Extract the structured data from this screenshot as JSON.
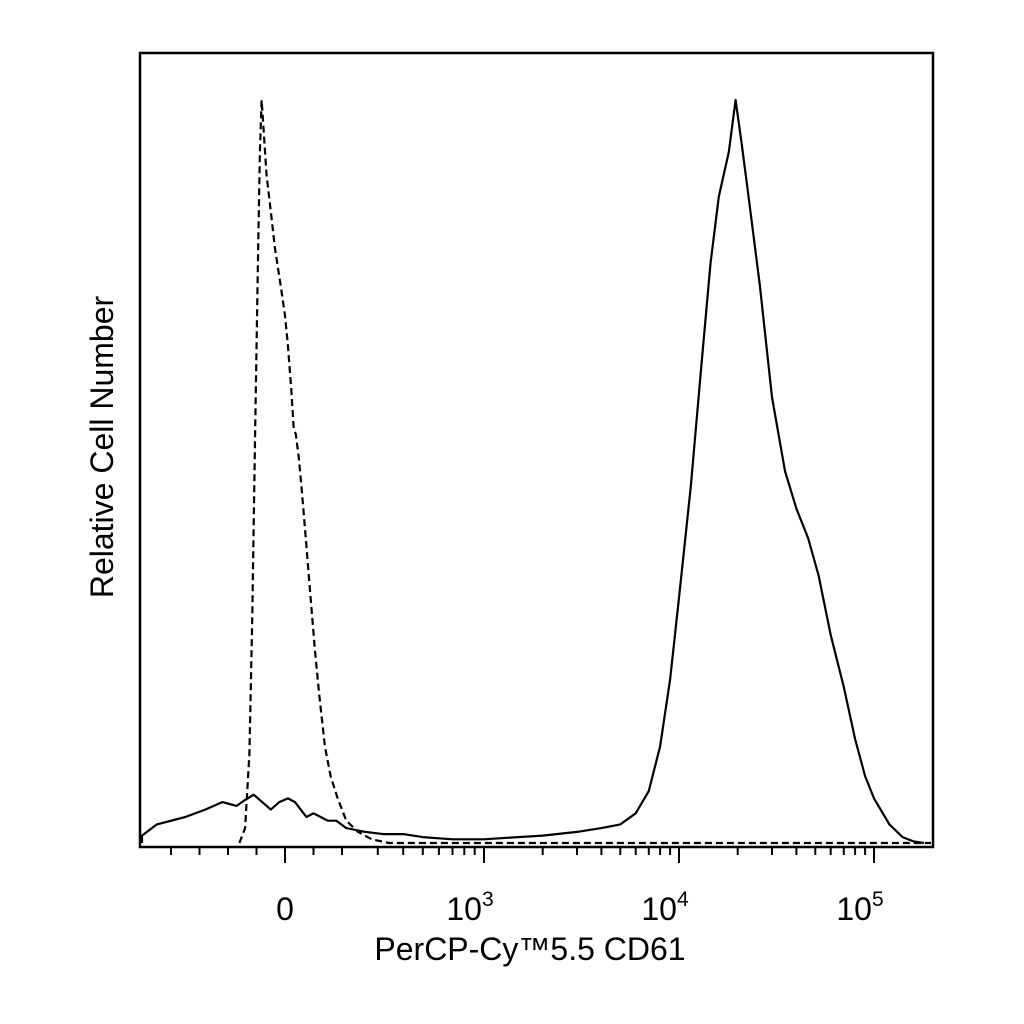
{
  "chart_data": {
    "type": "line",
    "title": "",
    "xlabel": "PerCP-Cy™5.5 CD61",
    "ylabel": "Relative Cell Number",
    "x_scale": "biexponential",
    "xlim": [
      -700,
      250000
    ],
    "ylim": [
      0,
      1
    ],
    "grid": false,
    "legend": "none",
    "x_ticks": [
      {
        "value": 0,
        "base": "0",
        "exp": ""
      },
      {
        "value": 1000,
        "base": "10",
        "exp": "3"
      },
      {
        "value": 10000,
        "base": "10",
        "exp": "4"
      },
      {
        "value": 100000,
        "base": "10",
        "exp": "5"
      }
    ],
    "series": [
      {
        "style": "dashed",
        "points": [
          [
            -160,
            0
          ],
          [
            -140,
            0.02
          ],
          [
            -125,
            0.12
          ],
          [
            -115,
            0.3
          ],
          [
            -105,
            0.55
          ],
          [
            -95,
            0.78
          ],
          [
            -88,
            0.93
          ],
          [
            -82,
            1.0
          ],
          [
            -75,
            0.96
          ],
          [
            -65,
            0.9
          ],
          [
            -50,
            0.85
          ],
          [
            -35,
            0.8
          ],
          [
            -15,
            0.75
          ],
          [
            0,
            0.71
          ],
          [
            10,
            0.67
          ],
          [
            22,
            0.61
          ],
          [
            30,
            0.56
          ],
          [
            38,
            0.55
          ],
          [
            48,
            0.52
          ],
          [
            60,
            0.47
          ],
          [
            75,
            0.4
          ],
          [
            90,
            0.33
          ],
          [
            105,
            0.26
          ],
          [
            120,
            0.2
          ],
          [
            140,
            0.13
          ],
          [
            160,
            0.09
          ],
          [
            185,
            0.06
          ],
          [
            210,
            0.03
          ],
          [
            240,
            0.015
          ],
          [
            280,
            0.005
          ],
          [
            340,
            0
          ],
          [
            1000,
            0
          ],
          [
            10000,
            0
          ],
          [
            100000,
            0
          ],
          [
            200000,
            0
          ]
        ]
      },
      {
        "style": "solid",
        "points": [
          [
            -650,
            0
          ],
          [
            -550,
            0.01
          ],
          [
            -450,
            0.025
          ],
          [
            -350,
            0.035
          ],
          [
            -280,
            0.045
          ],
          [
            -220,
            0.055
          ],
          [
            -170,
            0.05
          ],
          [
            -140,
            0.058
          ],
          [
            -110,
            0.065
          ],
          [
            -80,
            0.055
          ],
          [
            -50,
            0.045
          ],
          [
            -20,
            0.055
          ],
          [
            10,
            0.06
          ],
          [
            35,
            0.055
          ],
          [
            55,
            0.045
          ],
          [
            75,
            0.035
          ],
          [
            100,
            0.04
          ],
          [
            125,
            0.035
          ],
          [
            150,
            0.03
          ],
          [
            180,
            0.03
          ],
          [
            210,
            0.02
          ],
          [
            260,
            0.015
          ],
          [
            320,
            0.012
          ],
          [
            400,
            0.012
          ],
          [
            500,
            0.008
          ],
          [
            700,
            0.005
          ],
          [
            1000,
            0.005
          ],
          [
            1500,
            0.008
          ],
          [
            2000,
            0.01
          ],
          [
            3000,
            0.015
          ],
          [
            4000,
            0.02
          ],
          [
            5000,
            0.025
          ],
          [
            6000,
            0.04
          ],
          [
            7000,
            0.07
          ],
          [
            8000,
            0.13
          ],
          [
            9000,
            0.22
          ],
          [
            10000,
            0.33
          ],
          [
            11500,
            0.48
          ],
          [
            13000,
            0.64
          ],
          [
            14500,
            0.78
          ],
          [
            16000,
            0.87
          ],
          [
            18000,
            0.93
          ],
          [
            19500,
            1.0
          ],
          [
            21000,
            0.94
          ],
          [
            23000,
            0.86
          ],
          [
            26000,
            0.75
          ],
          [
            30000,
            0.6
          ],
          [
            35000,
            0.5
          ],
          [
            40000,
            0.45
          ],
          [
            46000,
            0.41
          ],
          [
            52000,
            0.36
          ],
          [
            60000,
            0.28
          ],
          [
            70000,
            0.21
          ],
          [
            80000,
            0.14
          ],
          [
            90000,
            0.09
          ],
          [
            100000,
            0.06
          ],
          [
            120000,
            0.025
          ],
          [
            140000,
            0.008
          ],
          [
            160000,
            0.002
          ],
          [
            180000,
            0
          ]
        ]
      }
    ]
  }
}
